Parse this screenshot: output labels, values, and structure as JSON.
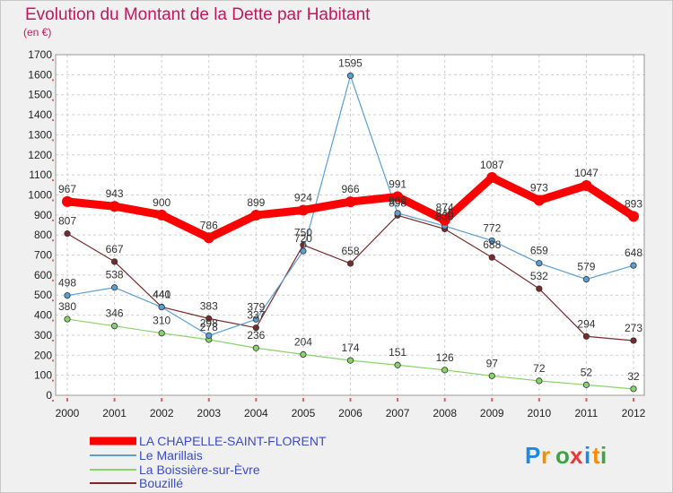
{
  "chart_data": {
    "type": "line",
    "title": "Evolution du Montant de la Dette par Habitant",
    "subtitle": "(en €)",
    "x": [
      "2000",
      "2001",
      "2002",
      "2003",
      "2004",
      "2005",
      "2006",
      "2007",
      "2008",
      "2009",
      "2010",
      "2011",
      "2012"
    ],
    "y_ticks": [
      "0",
      "100",
      "200",
      "300",
      "400",
      "500",
      "600",
      "700",
      "800",
      "900",
      "1000",
      "1100",
      "1200",
      "1300",
      "1400",
      "1500",
      "1600",
      "1700"
    ],
    "ylim": [
      0,
      1700
    ],
    "grid": true,
    "legend_position": "bottom-left",
    "series": [
      {
        "name": "LA CHAPELLE-SAINT-FLORENT",
        "color": "#ff0000",
        "values": [
          967,
          943,
          900,
          786,
          899,
          924,
          966,
          991,
          874,
          1087,
          973,
          1047,
          893
        ]
      },
      {
        "name": "Le Marillais",
        "color": "#5a9fd4",
        "values": [
          498,
          538,
          440,
          298,
          379,
          720,
          1595,
          909,
          845,
          772,
          659,
          579,
          648
        ]
      },
      {
        "name": "La Boissière-sur-Èvre",
        "color": "#88d46a",
        "values": [
          380,
          346,
          310,
          278,
          236,
          204,
          174,
          151,
          126,
          97,
          72,
          52,
          32
        ]
      },
      {
        "name": "Bouzillé",
        "color": "#7a2a2a",
        "values": [
          807,
          667,
          441,
          383,
          337,
          750,
          658,
          898,
          830,
          688,
          532,
          294,
          273
        ]
      }
    ]
  },
  "logo": {
    "text": "Proxiti",
    "colors": [
      "#1e88e5",
      "#fb8c00",
      "#43a047",
      "#e53935",
      "#1e88e5",
      "#fb8c00",
      "#43a047"
    ]
  }
}
